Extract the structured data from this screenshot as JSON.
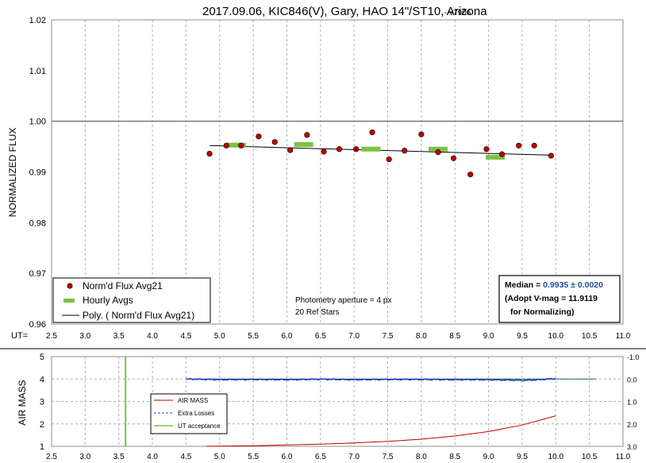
{
  "title_main": "2017.09.06, KIC846(V), Gary, HAO 14\"/ST10, Arizona",
  "title_version": " - v7906",
  "chart_data": [
    {
      "type": "scatter",
      "ylabel": "NORMALIZED FLUX",
      "xlabel_prefix": "UT=",
      "xlim": [
        2.5,
        11.0
      ],
      "ylim": [
        0.96,
        1.02
      ],
      "x_ticks": [
        "2.5",
        "3.0",
        "3.5",
        "4.0",
        "4.5",
        "5.0",
        "5.5",
        "6.0",
        "6.5",
        "7.0",
        "7.5",
        "8.0",
        "8.5",
        "9.0",
        "9.5",
        "10.0",
        "10.5",
        "11.0"
      ],
      "y_ticks": [
        "0.96",
        "0.97",
        "0.98",
        "0.99",
        "1.00",
        "1.01",
        "1.02"
      ],
      "reference_line": 1.0,
      "series": [
        {
          "name": "Norm'd Flux Avg21",
          "color": "#c00000",
          "points": [
            [
              4.85,
              0.9936
            ],
            [
              5.1,
              0.9952
            ],
            [
              5.32,
              0.9952
            ],
            [
              5.58,
              0.997
            ],
            [
              5.82,
              0.9959
            ],
            [
              6.05,
              0.9943
            ],
            [
              6.3,
              0.9973
            ],
            [
              6.55,
              0.994
            ],
            [
              6.78,
              0.9945
            ],
            [
              7.03,
              0.9945
            ],
            [
              7.27,
              0.9978
            ],
            [
              7.52,
              0.9925
            ],
            [
              7.75,
              0.9942
            ],
            [
              8.0,
              0.9974
            ],
            [
              8.25,
              0.9939
            ],
            [
              8.48,
              0.9927
            ],
            [
              8.73,
              0.9895
            ],
            [
              8.97,
              0.9945
            ],
            [
              9.2,
              0.9935
            ],
            [
              9.45,
              0.9952
            ],
            [
              9.68,
              0.9952
            ],
            [
              9.93,
              0.9932
            ]
          ]
        },
        {
          "name": "Hourly Avgs",
          "color": "#7dc242",
          "points": [
            [
              5.25,
              0.9953
            ],
            [
              6.25,
              0.9954
            ],
            [
              7.25,
              0.9945
            ],
            [
              8.25,
              0.9945
            ],
            [
              9.1,
              0.9929
            ]
          ]
        },
        {
          "name": "Poly. ( Norm'd Flux Avg21)",
          "color": "#000000",
          "type": "line",
          "x_range": [
            4.85,
            9.95
          ],
          "y_range": [
            0.9952,
            0.9933
          ]
        }
      ],
      "annotations": [
        "Photometry aperture = 4 px",
        "20 Ref Stars"
      ],
      "median_box": {
        "label": "Median = ",
        "value": "0.9935 ± 0.0020",
        "value_color": "#1f4e9c",
        "line2": "(Adopt V-mag = 11.9119",
        "line3": "for Normalizing)"
      },
      "legend_position": "bottom-left"
    },
    {
      "type": "line",
      "ylabel": "AIR MASS",
      "xlim": [
        2.5,
        11.0
      ],
      "ylim": [
        1,
        5
      ],
      "y2lim": [
        -1.0,
        3.0
      ],
      "x_ticks": [
        "2.5",
        "3.0",
        "3.5",
        "4.0",
        "4.5",
        "5.0",
        "5.5",
        "6.0",
        "6.5",
        "7.0",
        "7.5",
        "8.0",
        "8.5",
        "9.0",
        "9.5",
        "10.0",
        "10.5",
        "11.0"
      ],
      "y_ticks": [
        "1",
        "2",
        "3",
        "4",
        "5"
      ],
      "y2_ticks": [
        "-1.0",
        "0.0",
        "1.0",
        "2.0",
        "3.0"
      ],
      "series": [
        {
          "name": "AIR MASS",
          "color": "#c00000",
          "points": [
            [
              4.8,
              1.0
            ],
            [
              5.5,
              1.03
            ],
            [
              6.0,
              1.06
            ],
            [
              6.5,
              1.1
            ],
            [
              7.0,
              1.15
            ],
            [
              7.5,
              1.22
            ],
            [
              8.0,
              1.32
            ],
            [
              8.5,
              1.46
            ],
            [
              9.0,
              1.66
            ],
            [
              9.5,
              1.95
            ],
            [
              10.0,
              2.36
            ]
          ]
        },
        {
          "name": "Extra Losses",
          "color": "#1f3fbf",
          "points": [
            [
              4.5,
              0.0
            ],
            [
              5.0,
              0.03
            ],
            [
              5.5,
              0.02
            ],
            [
              6.0,
              0.03
            ],
            [
              6.5,
              0.01
            ],
            [
              7.0,
              0.03
            ],
            [
              7.5,
              0.02
            ],
            [
              8.0,
              0.02
            ],
            [
              8.5,
              0.03
            ],
            [
              9.0,
              0.03
            ],
            [
              9.5,
              0.06
            ],
            [
              9.7,
              0.04
            ],
            [
              10.0,
              -0.02
            ]
          ]
        },
        {
          "name": "UT acceptance",
          "color": "#7dc242",
          "x": 3.6
        }
      ],
      "legend_position": "bottom-left"
    }
  ]
}
